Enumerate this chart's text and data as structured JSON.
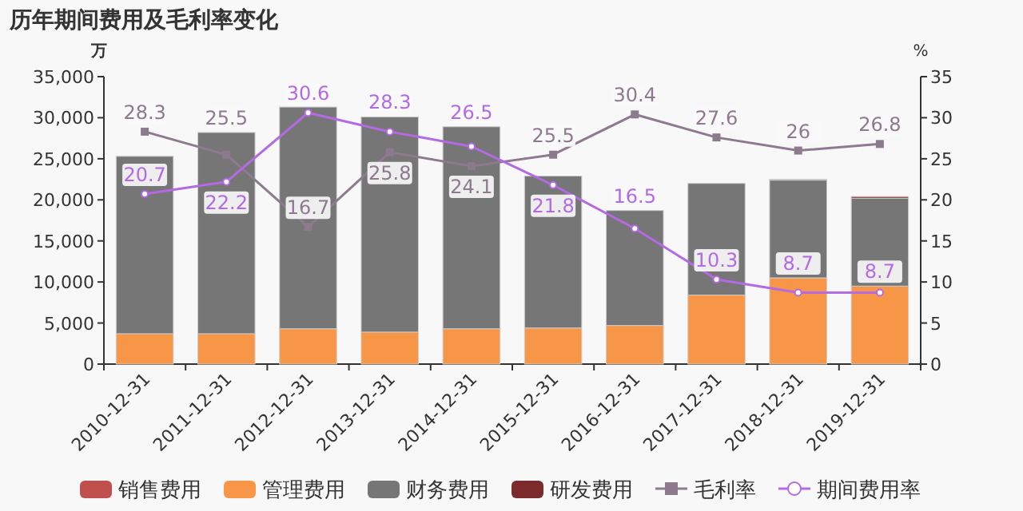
{
  "chart_data": {
    "type": "bar",
    "title": "历年期间费用及毛利率变化",
    "ylabel": "万",
    "y2label": "%",
    "categories": [
      "2010-12-31",
      "2011-12-31",
      "2012-12-31",
      "2013-12-31",
      "2014-12-31",
      "2015-12-31",
      "2016-12-31",
      "2017-12-31",
      "2018-12-31",
      "2019-12-31"
    ],
    "stacked": true,
    "series": [
      {
        "name": "销售费用",
        "color": "#c0504d",
        "values": [
          0,
          0,
          0,
          0,
          0,
          0,
          0,
          0,
          0,
          0
        ]
      },
      {
        "name": "管理费用",
        "color": "#f79646",
        "values": [
          3700,
          3700,
          4300,
          3900,
          4300,
          4400,
          4700,
          8400,
          10500,
          9500
        ]
      },
      {
        "name": "财务费用",
        "color": "#767676",
        "values": [
          21600,
          24500,
          27000,
          26200,
          24600,
          18500,
          14000,
          13600,
          11900,
          10700
        ]
      },
      {
        "name": "研发费用",
        "color": "#7b2b2b",
        "values": [
          0,
          0,
          0,
          0,
          0,
          0,
          0,
          0,
          100,
          200
        ]
      },
      {
        "name": "毛利率",
        "type": "line",
        "axis": "y2",
        "marker": "square",
        "color": "#8e7a8e",
        "values": [
          28.3,
          25.5,
          16.7,
          25.8,
          24.1,
          25.5,
          30.4,
          27.6,
          26,
          26.8
        ],
        "value_labels": [
          "28.3",
          "25.5",
          "16.7",
          "25.8",
          "24.1",
          "25.5",
          "30.4",
          "27.6",
          "26",
          "26.8"
        ]
      },
      {
        "name": "期间费用率",
        "type": "line",
        "axis": "y2",
        "marker": "circle",
        "color": "#b36ae2",
        "values": [
          20.7,
          22.2,
          30.6,
          28.3,
          26.5,
          21.8,
          16.5,
          10.3,
          8.7,
          8.7
        ],
        "value_labels": [
          "20.7",
          "22.2",
          "30.6",
          "28.3",
          "26.5",
          "21.8",
          "16.5",
          "10.3",
          "8.7",
          "8.7"
        ]
      }
    ],
    "ylim": [
      0,
      35000
    ],
    "yticks": [
      {
        "value": 0,
        "label": "0"
      },
      {
        "value": 5000,
        "label": "5,000"
      },
      {
        "value": 10000,
        "label": "10,000"
      },
      {
        "value": 15000,
        "label": "15,000"
      },
      {
        "value": 20000,
        "label": "20,000"
      },
      {
        "value": 25000,
        "label": "25,000"
      },
      {
        "value": 30000,
        "label": "30,000"
      },
      {
        "value": 35000,
        "label": "35,000"
      }
    ],
    "y2lim": [
      0,
      35
    ],
    "y2ticks": [
      0,
      5,
      10,
      15,
      20,
      25,
      30,
      35
    ],
    "legend": "bottom",
    "grid": false
  }
}
